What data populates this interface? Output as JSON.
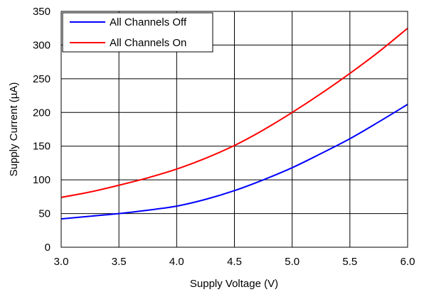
{
  "chart_data": {
    "type": "line",
    "title": "",
    "xlabel": "Supply Voltage (V)",
    "ylabel": "Supply Current (µA)",
    "xlim": [
      3.0,
      6.0
    ],
    "ylim": [
      0,
      350
    ],
    "x_ticks": [
      "3.0",
      "3.5",
      "4.0",
      "4.5",
      "5.0",
      "5.5",
      "6.0"
    ],
    "y_ticks": [
      "0",
      "50",
      "100",
      "150",
      "200",
      "250",
      "300",
      "350"
    ],
    "grid": true,
    "legend_position": "top-left",
    "series": [
      {
        "name": "All Channels Off",
        "color": "#0000ff",
        "x": [
          3.0,
          3.25,
          3.5,
          3.75,
          4.0,
          4.25,
          4.5,
          4.75,
          5.0,
          5.25,
          5.5,
          5.75,
          6.0
        ],
        "y": [
          42,
          46,
          50,
          55,
          61,
          71,
          84,
          100,
          118,
          139,
          161,
          186,
          212
        ]
      },
      {
        "name": "All Channels On",
        "color": "#ff0000",
        "x": [
          3.0,
          3.25,
          3.5,
          3.75,
          4.0,
          4.25,
          4.5,
          4.75,
          5.0,
          5.25,
          5.5,
          5.75,
          6.0
        ],
        "y": [
          74,
          82,
          92,
          103,
          116,
          132,
          151,
          174,
          200,
          228,
          258,
          290,
          325
        ]
      }
    ]
  }
}
